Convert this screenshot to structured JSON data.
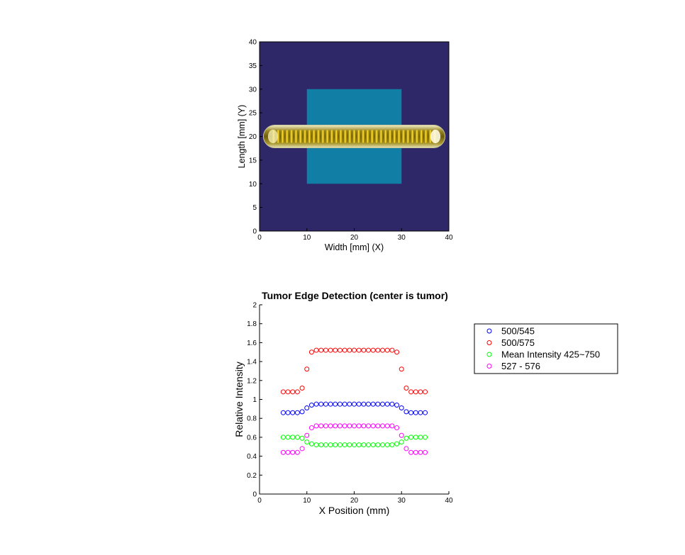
{
  "chart_data": [
    {
      "type": "heatmap",
      "title": "",
      "xlabel": "Width [mm] (X)",
      "ylabel": "Length [mm] (Y)",
      "xlim": [
        0,
        40
      ],
      "ylim": [
        0,
        40
      ],
      "xticks": [
        "0",
        "10",
        "20",
        "30",
        "40"
      ],
      "yticks": [
        "0",
        "5",
        "10",
        "15",
        "20",
        "25",
        "30",
        "35",
        "40"
      ],
      "background_color": "#2e2868",
      "tumor_region": {
        "x": [
          10,
          30
        ],
        "y": [
          10,
          30
        ],
        "color": "#117ea6"
      },
      "probe": {
        "x": [
          2.5,
          37.5
        ],
        "y": 20,
        "width_mm": 4.8,
        "segments": 37,
        "color": "#d6b41a"
      },
      "grid": false
    },
    {
      "type": "scatter",
      "title": "Tumor Edge Detection (center is tumor)",
      "xlabel": "X Position (mm)",
      "ylabel": "Relative Intensity",
      "xlim": [
        0,
        40
      ],
      "ylim": [
        0,
        2
      ],
      "xticks": [
        "0",
        "10",
        "20",
        "30",
        "40"
      ],
      "yticks": [
        "0",
        "0.2",
        "0.4",
        "0.6",
        "0.8",
        "1",
        "1.2",
        "1.4",
        "1.6",
        "1.8",
        "2"
      ],
      "grid": false,
      "legend_position": "outside-right",
      "x": [
        5,
        6,
        7,
        8,
        9,
        10,
        11,
        12,
        13,
        14,
        15,
        16,
        17,
        18,
        19,
        20,
        21,
        22,
        23,
        24,
        25,
        26,
        27,
        28,
        29,
        30,
        31,
        32,
        33,
        34,
        35
      ],
      "series": [
        {
          "name": "500/545",
          "color": "#0000ff",
          "values": [
            0.86,
            0.86,
            0.86,
            0.86,
            0.87,
            0.91,
            0.94,
            0.95,
            0.95,
            0.95,
            0.95,
            0.95,
            0.95,
            0.95,
            0.95,
            0.95,
            0.95,
            0.95,
            0.95,
            0.95,
            0.95,
            0.95,
            0.95,
            0.95,
            0.94,
            0.91,
            0.87,
            0.86,
            0.86,
            0.86,
            0.86
          ]
        },
        {
          "name": "500/575",
          "color": "#ff0000",
          "values": [
            1.08,
            1.08,
            1.08,
            1.08,
            1.12,
            1.32,
            1.5,
            1.52,
            1.52,
            1.52,
            1.52,
            1.52,
            1.52,
            1.52,
            1.52,
            1.52,
            1.52,
            1.52,
            1.52,
            1.52,
            1.52,
            1.52,
            1.52,
            1.52,
            1.5,
            1.32,
            1.12,
            1.08,
            1.08,
            1.08,
            1.08
          ]
        },
        {
          "name": "Mean Intensity 425~750",
          "color": "#00ff00",
          "values": [
            0.6,
            0.6,
            0.6,
            0.6,
            0.59,
            0.55,
            0.53,
            0.52,
            0.52,
            0.52,
            0.52,
            0.52,
            0.52,
            0.52,
            0.52,
            0.52,
            0.52,
            0.52,
            0.52,
            0.52,
            0.52,
            0.52,
            0.52,
            0.52,
            0.53,
            0.55,
            0.59,
            0.6,
            0.6,
            0.6,
            0.6
          ]
        },
        {
          "name": "527 - 576",
          "color": "#ff00ff",
          "values": [
            0.44,
            0.44,
            0.44,
            0.44,
            0.48,
            0.62,
            0.7,
            0.72,
            0.72,
            0.72,
            0.72,
            0.72,
            0.72,
            0.72,
            0.72,
            0.72,
            0.72,
            0.72,
            0.72,
            0.72,
            0.72,
            0.72,
            0.72,
            0.72,
            0.7,
            0.62,
            0.48,
            0.44,
            0.44,
            0.44,
            0.44
          ]
        }
      ]
    }
  ]
}
